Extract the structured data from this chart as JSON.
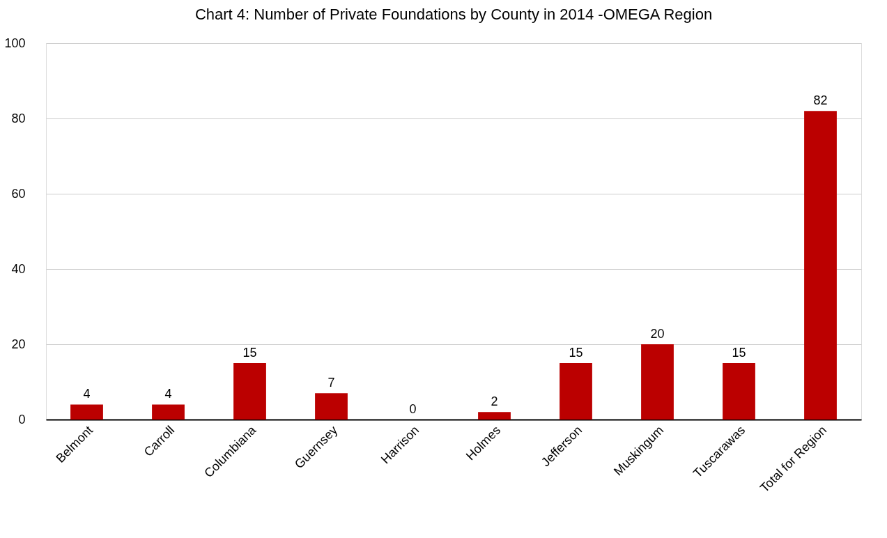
{
  "chart_data": {
    "type": "bar",
    "title": "Chart 4: Number of Private Foundations by County in 2014 -OMEGA Region",
    "categories": [
      "Belmont",
      "Carroll",
      "Columbiana",
      "Guernsey",
      "Harrison",
      "Holmes",
      "Jefferson",
      "Muskingum",
      "Tuscarawas",
      "Total for Region"
    ],
    "values": [
      4,
      4,
      15,
      7,
      0,
      2,
      15,
      20,
      15,
      82
    ],
    "color": "#bb0000",
    "ylim": [
      0,
      100
    ],
    "yticks": [
      0,
      20,
      40,
      60,
      80,
      100
    ],
    "grid": "y",
    "data_labels": true
  }
}
